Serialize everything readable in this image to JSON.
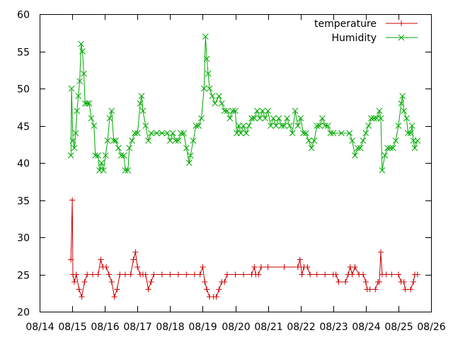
{
  "chart_data": {
    "type": "line",
    "title": "",
    "xlabel": "",
    "ylabel": "",
    "ylim": [
      20,
      60
    ],
    "yticks": [
      20,
      25,
      30,
      35,
      40,
      45,
      50,
      55,
      60
    ],
    "xlim": [
      "08/14",
      "08/26"
    ],
    "xticks": [
      "08/14",
      "08/15",
      "08/16",
      "08/17",
      "08/18",
      "08/19",
      "08/20",
      "08/21",
      "08/22",
      "08/23",
      "08/24",
      "08/25",
      "08/26"
    ],
    "grid": false,
    "legend_position": "top-right",
    "series": [
      {
        "name": "temperature",
        "color": "#cc0000",
        "marker": "plus",
        "points": [
          [
            "08/14 23:00",
            27
          ],
          [
            "08/15 00:00",
            35
          ],
          [
            "08/15 00:30",
            25
          ],
          [
            "08/15 01:30",
            24
          ],
          [
            "08/15 03:00",
            25
          ],
          [
            "08/15 05:00",
            23
          ],
          [
            "08/15 07:00",
            22
          ],
          [
            "08/15 09:00",
            24
          ],
          [
            "08/15 11:00",
            25
          ],
          [
            "08/15 15:00",
            25
          ],
          [
            "08/15 19:00",
            25
          ],
          [
            "08/15 21:00",
            27
          ],
          [
            "08/15 22:30",
            26
          ],
          [
            "08/16 01:00",
            26
          ],
          [
            "08/16 03:00",
            25
          ],
          [
            "08/16 05:00",
            24
          ],
          [
            "08/16 07:00",
            22
          ],
          [
            "08/16 09:00",
            23
          ],
          [
            "08/16 11:00",
            25
          ],
          [
            "08/16 15:00",
            25
          ],
          [
            "08/16 19:00",
            25
          ],
          [
            "08/16 21:00",
            27
          ],
          [
            "08/16 22:30",
            28
          ],
          [
            "08/17 00:00",
            26
          ],
          [
            "08/17 02:00",
            25
          ],
          [
            "08/17 04:00",
            25
          ],
          [
            "08/17 06:00",
            25
          ],
          [
            "08/17 08:00",
            23
          ],
          [
            "08/17 10:00",
            24
          ],
          [
            "08/17 12:00",
            25
          ],
          [
            "08/17 18:00",
            25
          ],
          [
            "08/18 00:00",
            25
          ],
          [
            "08/18 06:00",
            25
          ],
          [
            "08/18 12:00",
            25
          ],
          [
            "08/18 18:00",
            25
          ],
          [
            "08/18 22:00",
            25
          ],
          [
            "08/19 00:00",
            26
          ],
          [
            "08/19 01:30",
            24
          ],
          [
            "08/19 03:00",
            23
          ],
          [
            "08/19 05:00",
            22
          ],
          [
            "08/19 08:00",
            22
          ],
          [
            "08/19 10:00",
            22
          ],
          [
            "08/19 12:00",
            23
          ],
          [
            "08/19 14:00",
            24
          ],
          [
            "08/19 16:00",
            24
          ],
          [
            "08/19 18:00",
            25
          ],
          [
            "08/20 00:00",
            25
          ],
          [
            "08/20 06:00",
            25
          ],
          [
            "08/20 12:00",
            25
          ],
          [
            "08/20 14:00",
            26
          ],
          [
            "08/20 15:00",
            25
          ],
          [
            "08/20 17:00",
            25
          ],
          [
            "08/20 19:00",
            26
          ],
          [
            "08/21 00:00",
            26
          ],
          [
            "08/21 12:00",
            26
          ],
          [
            "08/21 22:00",
            26
          ],
          [
            "08/21 23:30",
            27
          ],
          [
            "08/22 01:00",
            25
          ],
          [
            "08/22 02:30",
            26
          ],
          [
            "08/22 05:00",
            26
          ],
          [
            "08/22 07:00",
            25
          ],
          [
            "08/22 12:00",
            25
          ],
          [
            "08/22 18:00",
            25
          ],
          [
            "08/23 00:00",
            25
          ],
          [
            "08/23 02:00",
            25
          ],
          [
            "08/23 04:00",
            24
          ],
          [
            "08/23 09:00",
            24
          ],
          [
            "08/23 11:00",
            25
          ],
          [
            "08/23 12:30",
            26
          ],
          [
            "08/23 14:00",
            25
          ],
          [
            "08/23 16:00",
            26
          ],
          [
            "08/23 19:00",
            25
          ],
          [
            "08/23 22:00",
            25
          ],
          [
            "08/24 00:00",
            24
          ],
          [
            "08/24 01:00",
            23
          ],
          [
            "08/24 03:00",
            23
          ],
          [
            "08/24 07:00",
            23
          ],
          [
            "08/24 09:00",
            24
          ],
          [
            "08/24 10:00",
            24
          ],
          [
            "08/24 11:00",
            28
          ],
          [
            "08/24 12:00",
            25
          ],
          [
            "08/24 15:00",
            25
          ],
          [
            "08/24 19:00",
            25
          ],
          [
            "08/25 00:00",
            25
          ],
          [
            "08/25 02:00",
            24
          ],
          [
            "08/25 04:00",
            24
          ],
          [
            "08/25 05:00",
            23
          ],
          [
            "08/25 09:00",
            23
          ],
          [
            "08/25 11:00",
            24
          ],
          [
            "08/25 12:00",
            25
          ],
          [
            "08/25 14:00",
            25
          ]
        ]
      },
      {
        "name": "Humidity",
        "color": "#00aa00",
        "marker": "cross",
        "points": [
          [
            "08/14 23:00",
            41
          ],
          [
            "08/14 23:30",
            50
          ],
          [
            "08/15 00:30",
            43
          ],
          [
            "08/15 01:30",
            42
          ],
          [
            "08/15 02:30",
            44
          ],
          [
            "08/15 03:30",
            47
          ],
          [
            "08/15 04:30",
            49
          ],
          [
            "08/15 05:30",
            51
          ],
          [
            "08/15 06:30",
            56
          ],
          [
            "08/15 07:30",
            55
          ],
          [
            "08/15 08:30",
            52
          ],
          [
            "08/15 09:30",
            48
          ],
          [
            "08/15 11:00",
            48
          ],
          [
            "08/15 12:30",
            48
          ],
          [
            "08/15 14:00",
            46
          ],
          [
            "08/15 16:00",
            45
          ],
          [
            "08/15 17:00",
            41
          ],
          [
            "08/15 19:00",
            41
          ],
          [
            "08/15 20:00",
            39
          ],
          [
            "08/15 21:30",
            40
          ],
          [
            "08/15 23:00",
            39
          ],
          [
            "08/16 00:30",
            41
          ],
          [
            "08/16 02:00",
            43
          ],
          [
            "08/16 03:30",
            46
          ],
          [
            "08/16 05:00",
            47
          ],
          [
            "08/16 06:30",
            43
          ],
          [
            "08/16 08:00",
            43
          ],
          [
            "08/16 10:00",
            42
          ],
          [
            "08/16 12:00",
            41
          ],
          [
            "08/16 14:00",
            41
          ],
          [
            "08/16 15:00",
            39
          ],
          [
            "08/16 17:00",
            39
          ],
          [
            "08/16 18:00",
            42
          ],
          [
            "08/16 20:00",
            43
          ],
          [
            "08/16 22:00",
            44
          ],
          [
            "08/17 00:00",
            44
          ],
          [
            "08/17 02:00",
            48
          ],
          [
            "08/17 03:00",
            49
          ],
          [
            "08/17 04:00",
            47
          ],
          [
            "08/17 06:00",
            45
          ],
          [
            "08/17 08:00",
            43
          ],
          [
            "08/17 10:00",
            44
          ],
          [
            "08/17 14:00",
            44
          ],
          [
            "08/17 18:00",
            44
          ],
          [
            "08/17 22:00",
            44
          ],
          [
            "08/18 00:00",
            43
          ],
          [
            "08/18 02:00",
            44
          ],
          [
            "08/18 04:00",
            43
          ],
          [
            "08/18 06:00",
            43
          ],
          [
            "08/18 08:00",
            44
          ],
          [
            "08/18 10:00",
            44
          ],
          [
            "08/18 12:00",
            42
          ],
          [
            "08/18 14:00",
            40
          ],
          [
            "08/18 15:00",
            41
          ],
          [
            "08/18 17:00",
            43
          ],
          [
            "08/18 19:00",
            45
          ],
          [
            "08/18 21:00",
            45
          ],
          [
            "08/18 23:00",
            46
          ],
          [
            "08/19 01:00",
            50
          ],
          [
            "08/19 02:00",
            57
          ],
          [
            "08/19 03:00",
            54
          ],
          [
            "08/19 04:00",
            52
          ],
          [
            "08/19 05:00",
            50
          ],
          [
            "08/19 07:00",
            49
          ],
          [
            "08/19 09:00",
            48
          ],
          [
            "08/19 12:00",
            49
          ],
          [
            "08/19 14:00",
            48
          ],
          [
            "08/19 16:00",
            47
          ],
          [
            "08/19 18:00",
            47
          ],
          [
            "08/19 20:00",
            46
          ],
          [
            "08/19 22:00",
            47
          ],
          [
            "08/20 00:00",
            47
          ],
          [
            "08/20 01:00",
            44
          ],
          [
            "08/20 02:30",
            45
          ],
          [
            "08/20 04:00",
            44
          ],
          [
            "08/20 06:00",
            45
          ],
          [
            "08/20 08:00",
            44
          ],
          [
            "08/20 10:00",
            45
          ],
          [
            "08/20 12:00",
            46
          ],
          [
            "08/20 14:00",
            46
          ],
          [
            "08/20 16:00",
            47
          ],
          [
            "08/20 18:00",
            46
          ],
          [
            "08/20 20:00",
            47
          ],
          [
            "08/20 22:00",
            46
          ],
          [
            "08/21 00:00",
            47
          ],
          [
            "08/21 02:00",
            45
          ],
          [
            "08/21 04:00",
            46
          ],
          [
            "08/21 06:00",
            45
          ],
          [
            "08/21 08:00",
            46
          ],
          [
            "08/21 10:00",
            45
          ],
          [
            "08/21 12:00",
            45
          ],
          [
            "08/21 14:00",
            46
          ],
          [
            "08/21 16:00",
            45
          ],
          [
            "08/21 18:00",
            44
          ],
          [
            "08/21 20:00",
            47
          ],
          [
            "08/21 22:00",
            45
          ],
          [
            "08/22 00:00",
            46
          ],
          [
            "08/22 02:00",
            44
          ],
          [
            "08/22 04:00",
            44
          ],
          [
            "08/22 06:00",
            43
          ],
          [
            "08/22 08:00",
            42
          ],
          [
            "08/22 10:00",
            43
          ],
          [
            "08/22 12:00",
            45
          ],
          [
            "08/22 14:00",
            45
          ],
          [
            "08/22 16:00",
            46
          ],
          [
            "08/22 18:00",
            45
          ],
          [
            "08/22 20:00",
            45
          ],
          [
            "08/22 22:00",
            44
          ],
          [
            "08/23 00:00",
            44
          ],
          [
            "08/23 06:00",
            44
          ],
          [
            "08/23 12:00",
            44
          ],
          [
            "08/23 14:00",
            43
          ],
          [
            "08/23 16:00",
            41
          ],
          [
            "08/23 18:00",
            42
          ],
          [
            "08/23 20:00",
            42
          ],
          [
            "08/23 22:00",
            43
          ],
          [
            "08/24 00:00",
            44
          ],
          [
            "08/24 02:00",
            45
          ],
          [
            "08/24 04:00",
            46
          ],
          [
            "08/24 06:00",
            46
          ],
          [
            "08/24 08:00",
            46
          ],
          [
            "08/24 10:00",
            47
          ],
          [
            "08/24 11:00",
            46
          ],
          [
            "08/24 12:00",
            39
          ],
          [
            "08/24 14:00",
            41
          ],
          [
            "08/24 16:00",
            42
          ],
          [
            "08/24 18:00",
            42
          ],
          [
            "08/24 20:00",
            42
          ],
          [
            "08/24 22:00",
            43
          ],
          [
            "08/25 00:00",
            45
          ],
          [
            "08/25 02:00",
            48
          ],
          [
            "08/25 03:00",
            49
          ],
          [
            "08/25 04:00",
            47
          ],
          [
            "08/25 06:00",
            46
          ],
          [
            "08/25 07:00",
            44
          ],
          [
            "08/25 09:00",
            44
          ],
          [
            "08/25 10:00",
            45
          ],
          [
            "08/25 11:00",
            43
          ],
          [
            "08/25 12:00",
            42
          ],
          [
            "08/25 14:00",
            43
          ]
        ]
      }
    ]
  }
}
